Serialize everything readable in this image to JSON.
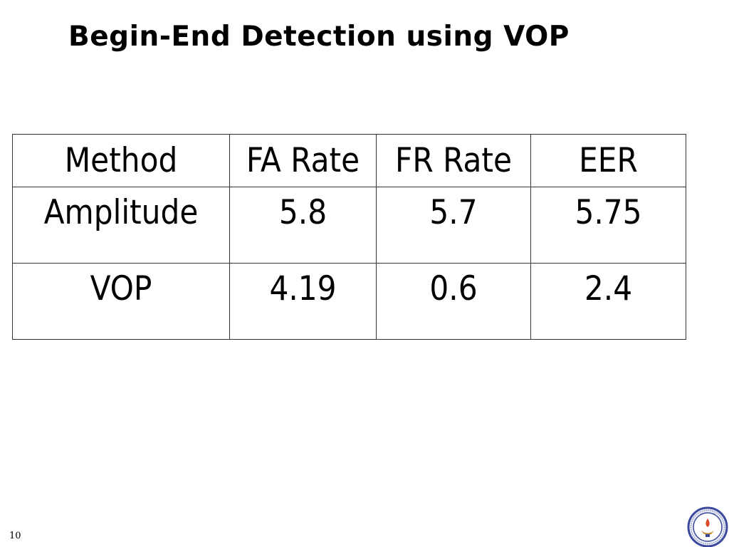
{
  "slide": {
    "title": "Begin-End Detection using VOP",
    "page_number": "10"
  },
  "table": {
    "headers": [
      "Method",
      "FA Rate",
      "FR Rate",
      "EER"
    ],
    "rows": [
      [
        "Amplitude",
        "5.8",
        "5.7",
        "5.75"
      ],
      [
        "VOP",
        "4.19",
        "0.6",
        "2.4"
      ]
    ]
  },
  "logo": {
    "icon": "institute-emblem-icon",
    "colors": {
      "ring": "#3b4a9c",
      "flame": "#d94a2a",
      "lamp": "#c08a2a"
    }
  }
}
